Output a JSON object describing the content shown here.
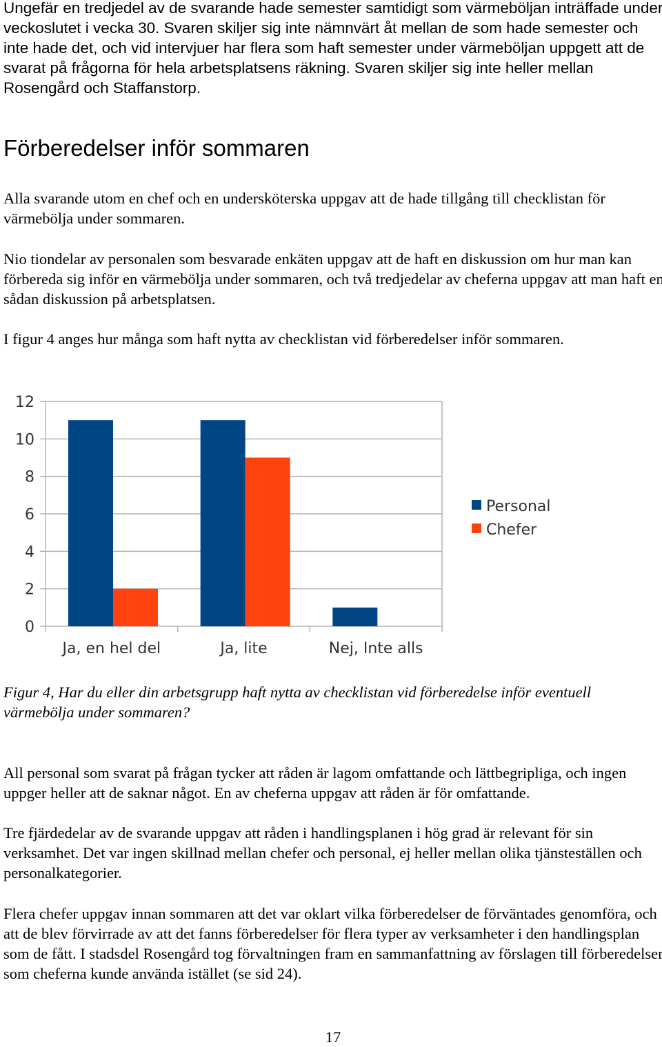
{
  "paragraphs": {
    "intro": "Ungefär en tredjedel av de svarande hade semester samtidigt som värmeböljan inträffade under veckoslutet i vecka 30. Svaren skiljer sig inte nämnvärt åt mellan de som hade semester och inte hade det, och vid intervjuer har flera som haft semester under värmeböljan uppgett att de svarat på frågorna för hela arbetsplatsens räkning. Svaren skiljer sig inte heller mellan Rosengård och Staffanstorp.",
    "p1": "Alla svarande utom en chef och en undersköterska uppgav att de hade tillgång till checklistan för värmebölja under sommaren.",
    "p2": "Nio tiondelar av personalen som besvarade enkäten uppgav att de haft en diskussion om hur man kan förbereda sig inför en värmebölja under sommaren, och två tredjedelar av cheferna uppgav att man haft en sådan diskussion på arbetsplatsen.",
    "p3": "I figur 4 anges hur många som haft nytta av checklistan vid förberedelser inför sommaren.",
    "p4": "All personal som svarat på frågan tycker att råden är lagom omfattande och lättbegripliga, och ingen uppger heller att de saknar något. En av cheferna uppgav att råden är för omfattande.",
    "p5": "Tre fjärdedelar av de svarande uppgav att råden i handlingsplanen i hög grad är relevant för sin verksamhet. Det var ingen skillnad mellan chefer och personal, ej heller mellan olika tjänsteställen och personalkategorier.",
    "p6": "Flera chefer uppgav innan sommaren att det var oklart vilka förberedelser de förväntades genomföra, och att de blev förvirrade av att det fanns förberedelser för flera typer av verksamheter i den handlingsplan som de fått. I stadsdel Rosengård tog förvaltningen fram en sammanfattning av förslagen till förberedelser som cheferna kunde använda istället (se sid 24)."
  },
  "heading": "Förberedelser inför sommaren",
  "caption": "Figur 4, Har du eller din arbetsgrupp haft nytta av checklistan vid förberedelse inför eventuell värmebölja under sommaren?",
  "page_number": "17",
  "colors": {
    "personal": "#004586",
    "chefer": "#ff420e",
    "grid": "#b3b3b3"
  },
  "chart_data": {
    "type": "bar",
    "categories": [
      "Ja, en hel del",
      "Ja, lite",
      "Nej, Inte alls"
    ],
    "series": [
      {
        "name": "Personal",
        "values": [
          11,
          11,
          1
        ]
      },
      {
        "name": "Chefer",
        "values": [
          2,
          9,
          0
        ]
      }
    ],
    "ylim": [
      0,
      12
    ],
    "yticks": [
      "0",
      "2",
      "4",
      "6",
      "8",
      "10",
      "12"
    ],
    "grid": true,
    "legend": "right",
    "title": "",
    "xlabel": "",
    "ylabel": ""
  }
}
